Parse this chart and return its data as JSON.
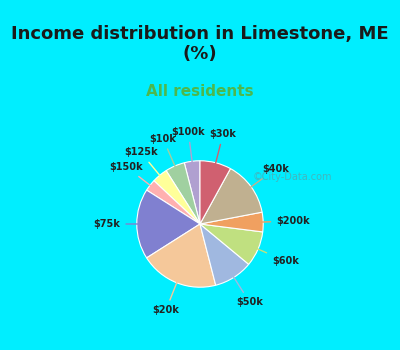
{
  "title": "Income distribution in Limestone, ME\n(%)",
  "subtitle": "All residents",
  "title_color": "#1a1a1a",
  "subtitle_color": "#4db84d",
  "bg_color_top": "#00eeff",
  "bg_color_chart": "#e8f5e9",
  "labels": [
    "$100k",
    "$10k",
    "$125k",
    "$150k",
    "$75k",
    "$20k",
    "$50k",
    "$60k",
    "$200k",
    "$40k",
    "$30k"
  ],
  "values": [
    4,
    5,
    4,
    3,
    18,
    20,
    10,
    9,
    5,
    14,
    8
  ],
  "colors": [
    "#b0a0d0",
    "#a0d0a0",
    "#ffff99",
    "#ffb0b0",
    "#8080d0",
    "#f5c89a",
    "#a0b8e0",
    "#c0e080",
    "#f0a060",
    "#c0b090",
    "#d06070"
  ],
  "figsize": [
    4.0,
    3.5
  ],
  "dpi": 100
}
